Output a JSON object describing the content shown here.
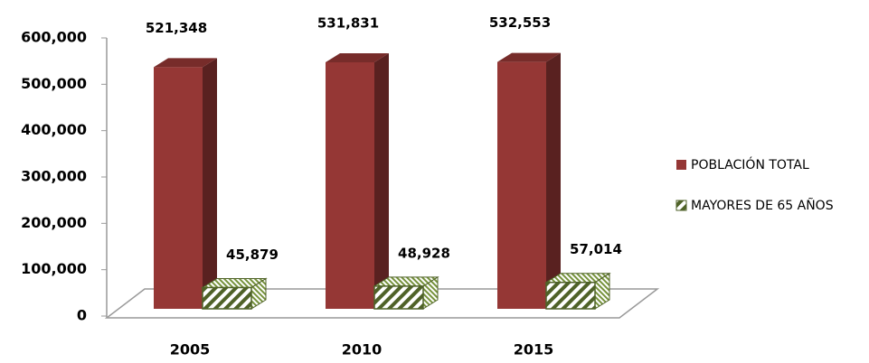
{
  "chart_data": {
    "type": "bar3d",
    "categories": [
      "2005",
      "2010",
      "2015"
    ],
    "series": [
      {
        "name": "POBLACIÓN TOTAL",
        "color": "#953735",
        "values": [
          521348,
          531831,
          532553
        ],
        "value_labels": [
          "521,348",
          "531,831",
          "532,553"
        ]
      },
      {
        "name": "MAYORES DE 65 AÑOS",
        "color": "#4f6228",
        "values": [
          45879,
          48928,
          57014
        ],
        "value_labels": [
          "45,879",
          "48,928",
          "57,014"
        ]
      }
    ],
    "ylim": [
      0,
      600000
    ],
    "yticks": [
      0,
      {
        "value": 100000,
        "label": "100,000"
      },
      {
        "value": 200000,
        "label": "200,000"
      },
      {
        "value": 300000,
        "label": "300,000"
      },
      {
        "value": 400000,
        "label": "400,000"
      },
      {
        "value": 500000,
        "label": "500,000"
      },
      {
        "value": 600000,
        "label": "600,000"
      }
    ],
    "legend": "right"
  }
}
